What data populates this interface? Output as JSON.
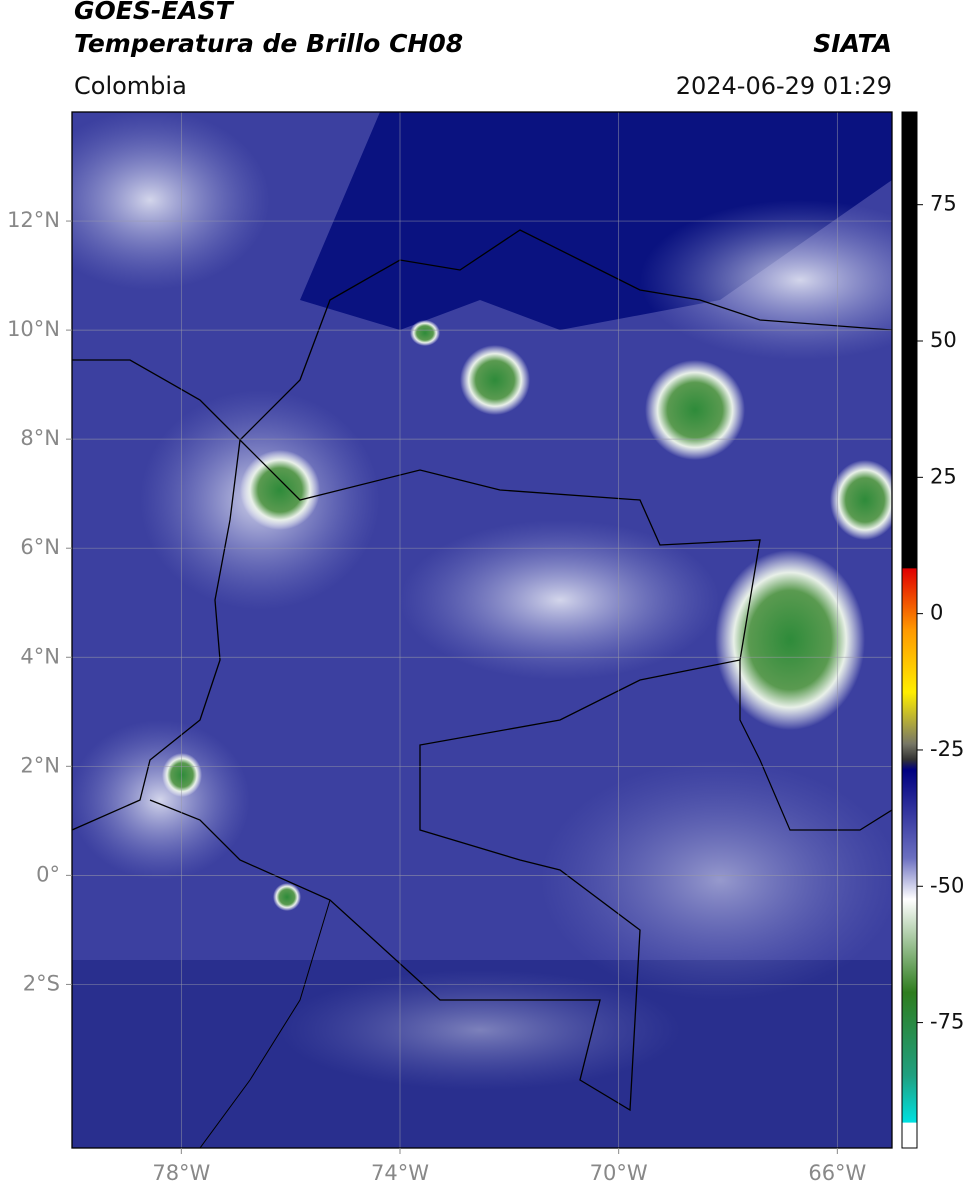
{
  "header": {
    "line1": "GOES-EAST",
    "line2": "Temperatura de Brillo CH08",
    "source": "SIATA",
    "region": "Colombia",
    "datetime": "2024-06-29 01:29"
  },
  "map": {
    "xlim": [
      -80,
      -65
    ],
    "ylim": [
      -5,
      14
    ],
    "xticks": [
      {
        "value": -78,
        "label": "78°W"
      },
      {
        "value": -74,
        "label": "74°W"
      },
      {
        "value": -70,
        "label": "70°W"
      },
      {
        "value": -66,
        "label": "66°W"
      }
    ],
    "yticks": [
      {
        "value": 12,
        "label": "12°N"
      },
      {
        "value": 10,
        "label": "10°N"
      },
      {
        "value": 8,
        "label": "8°N"
      },
      {
        "value": 6,
        "label": "6°N"
      },
      {
        "value": 4,
        "label": "4°N"
      },
      {
        "value": 2,
        "label": "2°N"
      },
      {
        "value": 0,
        "label": "0°"
      },
      {
        "value": -2,
        "label": "2°S"
      }
    ],
    "grid": true
  },
  "colorbar": {
    "lim": [
      -98,
      92
    ],
    "ticks": [
      75,
      50,
      25,
      0,
      -25,
      -50,
      -75
    ]
  }
}
